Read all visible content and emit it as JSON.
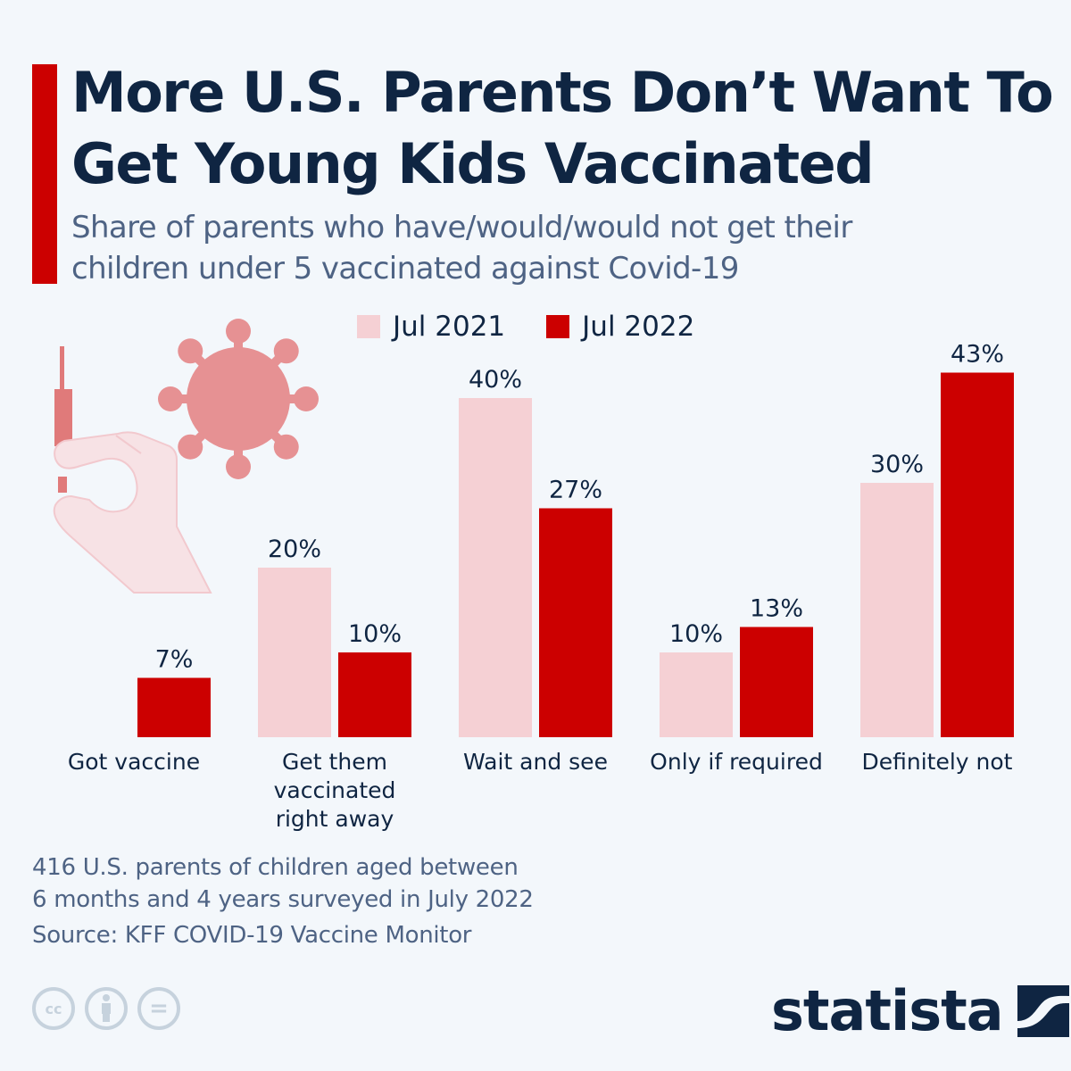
{
  "header": {
    "title": "More U.S. Parents Don’t Want To Get Young Kids Vaccinated",
    "subtitle": "Share of parents who have/would/would not get their children under 5 vaccinated against Covid-19"
  },
  "colors": {
    "accent": "#cc0000",
    "series_2021": "#f5d0d4",
    "series_2022": "#cc0000",
    "text_dark": "#0f2542",
    "text_muted": "#4e6384",
    "background": "#f3f7fb"
  },
  "chart_data": {
    "type": "bar",
    "title": "More U.S. Parents Don’t Want To Get Young Kids Vaccinated",
    "subtitle": "Share of parents who have/would/would not get their children under 5 vaccinated against Covid-19",
    "xlabel": "",
    "ylabel": "",
    "ylim": [
      0,
      45
    ],
    "grid": false,
    "legend_position": "top-center",
    "categories": [
      [
        "Got vaccine"
      ],
      [
        "Get them",
        "vaccinated",
        "right away"
      ],
      [
        "Wait and see"
      ],
      [
        "Only if required"
      ],
      [
        "Definitely not"
      ]
    ],
    "series": [
      {
        "name": "Jul 2021",
        "values": [
          null,
          20,
          40,
          10,
          30
        ],
        "labels": [
          null,
          "20%",
          "40%",
          "10%",
          "30%"
        ]
      },
      {
        "name": "Jul 2022",
        "values": [
          7,
          10,
          27,
          13,
          43
        ],
        "labels": [
          "7%",
          "10%",
          "27%",
          "13%",
          "43%"
        ]
      }
    ]
  },
  "legend": {
    "items": [
      {
        "label": "Jul 2021"
      },
      {
        "label": "Jul 2022"
      }
    ]
  },
  "notes": {
    "line1": "416 U.S. parents of children aged between",
    "line2": "6 months and 4 years surveyed in July 2022",
    "source": "Source: KFF COVID-19 Vaccine Monitor"
  },
  "license_icons": [
    "creative-commons-icon",
    "attribution-icon",
    "no-derivatives-icon"
  ],
  "license_glyphs": {
    "cc": "cc",
    "nd": "="
  },
  "logo": {
    "text": "statista"
  }
}
